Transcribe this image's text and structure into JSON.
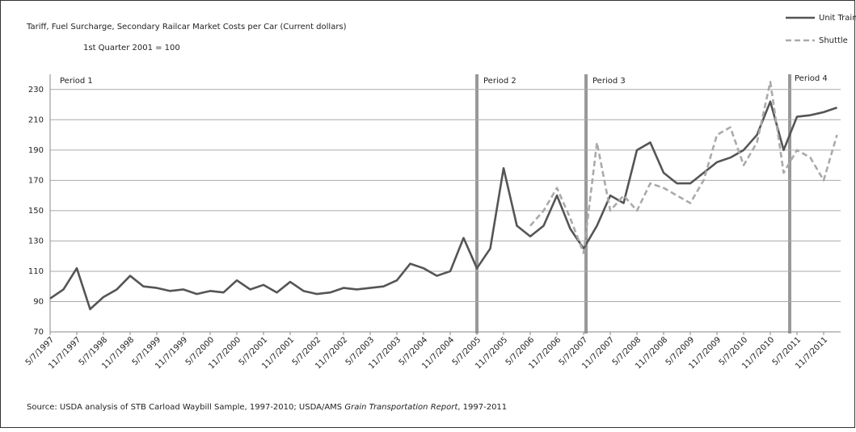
{
  "chart_data": {
    "type": "line",
    "title": "Tariff, Fuel Surcharge, Secondary Railcar Market Costs per Car (Current dollars)",
    "subtitle": "1st Quarter 2001 = 100",
    "annotations": [
      "Period 1",
      "Period 2",
      "Period 3",
      "Period 4"
    ],
    "source": [
      "Source: USDA analysis of STB Carload Waybill Sample, 1997-2010;  USDA/AMS ",
      "Grain Transportation Report",
      ", 1997-2011"
    ],
    "categories": [
      "5/7/1997",
      null,
      "11/7/1997",
      null,
      "5/7/1998",
      null,
      "11/7/1998",
      null,
      "5/7/1999",
      null,
      "11/7/1999",
      null,
      "5/7/2000",
      null,
      "11/7/2000",
      null,
      "5/7/2001",
      null,
      "11/7/2001",
      null,
      "5/7/2002",
      null,
      "11/7/2002",
      null,
      "5/7/2003",
      null,
      "11/7/2003",
      null,
      "5/7/2004",
      null,
      "11/7/2004",
      null,
      "5/7/2005",
      null,
      "11/7/2005",
      null,
      "5/7/2006",
      null,
      "11/7/2006",
      null,
      "5/7/2007",
      null,
      "11/7/2007",
      null,
      "5/7/2008",
      null,
      "11/7/2008",
      null,
      "5/7/2009",
      null,
      "11/7/2009",
      null,
      "5/7/2010",
      null,
      "11/7/2010",
      null,
      "5/7/2011",
      null,
      "11/7/2011",
      null
    ],
    "series": [
      {
        "name": "Unit Train",
        "color": "#555555",
        "dash": false,
        "values": [
          92,
          98,
          112,
          85,
          93,
          98,
          107,
          100,
          99,
          97,
          98,
          95,
          97,
          96,
          104,
          98,
          101,
          96,
          103,
          97,
          95,
          96,
          99,
          98,
          99,
          100,
          104,
          115,
          112,
          107,
          110,
          132,
          112,
          125,
          178,
          140,
          133,
          140,
          160,
          138,
          125,
          140,
          160,
          155,
          190,
          195,
          175,
          168,
          168,
          175,
          182,
          185,
          190,
          200,
          222,
          190,
          212,
          213,
          215,
          218
        ]
      },
      {
        "name": "Shuttle",
        "color": "#aaaaaa",
        "dash": true,
        "values": [
          null,
          null,
          null,
          null,
          null,
          null,
          null,
          null,
          null,
          null,
          null,
          null,
          null,
          null,
          null,
          null,
          null,
          null,
          null,
          null,
          null,
          null,
          null,
          null,
          null,
          null,
          null,
          null,
          null,
          null,
          null,
          null,
          null,
          null,
          null,
          null,
          140,
          150,
          165,
          145,
          122,
          195,
          150,
          160,
          150,
          168,
          165,
          160,
          155,
          170,
          200,
          205,
          180,
          195,
          235,
          175,
          190,
          185,
          170,
          200
        ]
      }
    ],
    "ylim": [
      70,
      240
    ],
    "yticks": [
      70,
      90,
      110,
      130,
      150,
      170,
      190,
      210,
      230
    ],
    "grid": true
  }
}
